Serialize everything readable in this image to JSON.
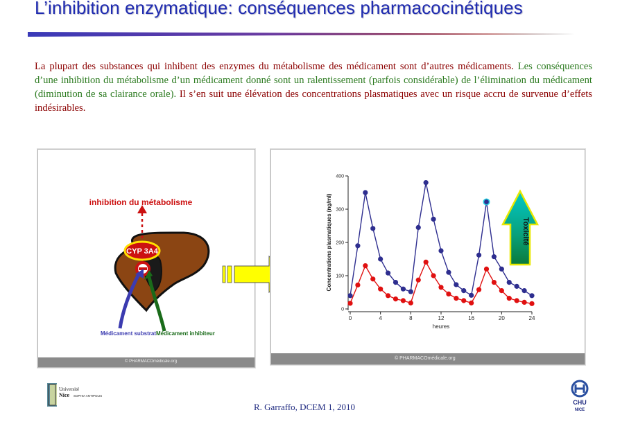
{
  "title": "L’inhibition enzymatique: conséquences pharmacocinétiques",
  "paragraph": {
    "red_part": "La plupart des substances qui inhibent des enzymes du métabolisme des médicament sont d’autres médicaments.",
    "green_part": "Les conséquences d’une inhibition du métabolisme d’un médicament donné sont un ralentissement (parfois considérable) de l’élimination du médicament (diminution de sa clairance orale).",
    "red_part2": "Il s’en suit une élévation des concentrations plasmatiques avec un risque accru de survenue d’effets indésirables."
  },
  "left_figure": {
    "inhibition_label": "inhibition du métabolisme",
    "enzyme_label": "CYP 3A4",
    "substrate_label": "Médicament substrat",
    "inhibitor_label": "Médicament inhibiteur",
    "copyright": "© PHARMACOmédicale.org",
    "colors": {
      "liver": "#8b4513",
      "enzyme_fill": "#cc1111",
      "enzyme_ring": "#ffe000",
      "substrate": "#3b3bb0",
      "inhibitor": "#1a6b1a",
      "dash": "#cc1111"
    }
  },
  "arrow_color": "#ffff00",
  "chart_data": {
    "type": "line",
    "xlabel": "heures",
    "ylabel": "Concentrations plasmatiques (ng/ml)",
    "xlim": [
      0,
      24
    ],
    "ylim": [
      0,
      400
    ],
    "x_ticks": [
      0,
      4,
      8,
      12,
      16,
      20,
      24
    ],
    "y_ticks": [
      0,
      100,
      200,
      300,
      400
    ],
    "series": [
      {
        "color": "#2e2e8f",
        "points": [
          [
            0,
            40
          ],
          [
            1,
            190
          ],
          [
            2,
            350
          ],
          [
            3,
            242
          ],
          [
            4,
            150
          ],
          [
            5,
            108
          ],
          [
            6,
            80
          ],
          [
            7,
            60
          ],
          [
            8,
            52
          ],
          [
            9,
            245
          ],
          [
            10,
            380
          ],
          [
            11,
            270
          ],
          [
            12,
            175
          ],
          [
            13,
            110
          ],
          [
            14,
            73
          ],
          [
            15,
            55
          ],
          [
            16,
            41
          ],
          [
            17,
            162
          ],
          [
            18,
            322
          ],
          [
            19,
            157
          ],
          [
            20,
            120
          ],
          [
            21,
            80
          ],
          [
            22,
            68
          ],
          [
            23,
            55
          ],
          [
            24,
            40
          ]
        ]
      },
      {
        "color": "#e01010",
        "points": [
          [
            0,
            17
          ],
          [
            1,
            72
          ],
          [
            2,
            130
          ],
          [
            3,
            90
          ],
          [
            4,
            60
          ],
          [
            5,
            40
          ],
          [
            6,
            30
          ],
          [
            7,
            25
          ],
          [
            8,
            18
          ],
          [
            9,
            87
          ],
          [
            10,
            141
          ],
          [
            11,
            100
          ],
          [
            12,
            65
          ],
          [
            13,
            45
          ],
          [
            14,
            32
          ],
          [
            15,
            25
          ],
          [
            16,
            18
          ],
          [
            17,
            58
          ],
          [
            18,
            120
          ],
          [
            19,
            80
          ],
          [
            20,
            55
          ],
          [
            21,
            32
          ],
          [
            22,
            25
          ],
          [
            23,
            20
          ],
          [
            24,
            16
          ]
        ]
      }
    ]
  },
  "toxicity_label": "Toxicité",
  "right_copyright": "© PHARMACOmédicale.org",
  "credit": "R. Garraffo, DCEM 1, 2010",
  "logos": {
    "left_line1": "Université",
    "left_line2": "Nice",
    "left_line3": "SOPHIA ANTIPOLIS",
    "right_line1": "CHU",
    "right_line2": "NICE"
  }
}
